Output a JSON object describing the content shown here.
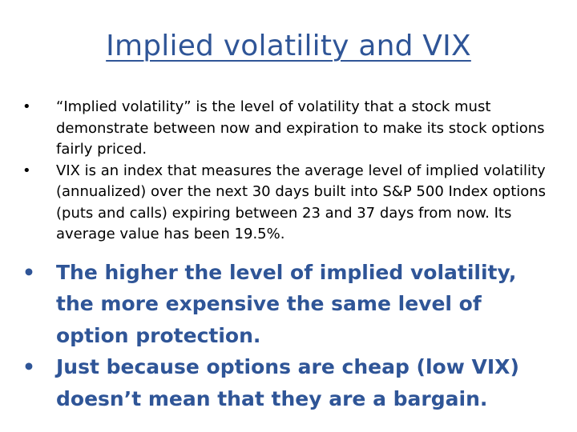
{
  "slide": {
    "title": "Implied volatility and VIX",
    "bullet_glyph": "•",
    "bullets": [
      {
        "text": "“Implied volatility” is the level of volatility that a stock must demonstrate between now and expiration to make its stock options fairly priced."
      },
      {
        "text": "VIX is an index that measures the average level of implied volatility (annualized) over the next 30 days built into S&P 500 Index options (puts and calls) expiring between 23 and 37 days from now.  Its average value has been 19.5%."
      },
      {
        "text": "The higher the level of implied volatility, the more expensive the same level of option protection."
      },
      {
        "text": "Just because options are cheap (low VIX) doesn’t mean that they are a bargain."
      }
    ]
  },
  "colors": {
    "title": "#2f5597",
    "emphasis": "#2f5597",
    "body_text": "#000000",
    "background": "#ffffff"
  }
}
